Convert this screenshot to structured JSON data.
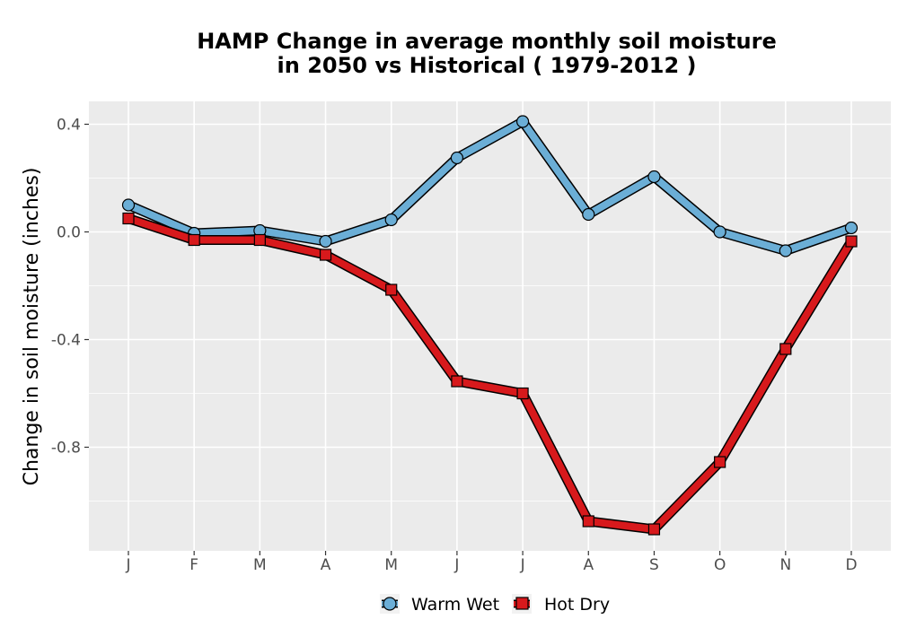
{
  "chart_data": {
    "type": "line",
    "title": [
      "HAMP  Change in average monthly soil moisture",
      "in 2050 vs Historical ( 1979-2012 )"
    ],
    "xlabel": "",
    "ylabel": "Change in soil moisture (inches)",
    "categories": [
      "J",
      "F",
      "M",
      "A",
      "M",
      "J",
      "J",
      "A",
      "S",
      "O",
      "N",
      "D"
    ],
    "ylim": [
      -1.185,
      0.485
    ],
    "yticks": [
      0.4,
      0.0,
      -0.4,
      -0.8
    ],
    "ytick_labels": [
      "0.4",
      "0.0",
      "-0.4",
      "-0.8"
    ],
    "grid": true,
    "legend_position": "bottom",
    "series": [
      {
        "name": "Warm Wet",
        "color": "#6baed6",
        "marker": "circle",
        "values": [
          0.1,
          -0.005,
          0.005,
          -0.035,
          0.045,
          0.275,
          0.41,
          0.065,
          0.205,
          0.0,
          -0.07,
          0.015
        ]
      },
      {
        "name": "Hot Dry",
        "color": "#d7191c",
        "marker": "square",
        "values": [
          0.05,
          -0.03,
          -0.03,
          -0.085,
          -0.215,
          -0.555,
          -0.6,
          -1.075,
          -1.105,
          -0.855,
          -0.435,
          -0.035
        ]
      }
    ]
  }
}
